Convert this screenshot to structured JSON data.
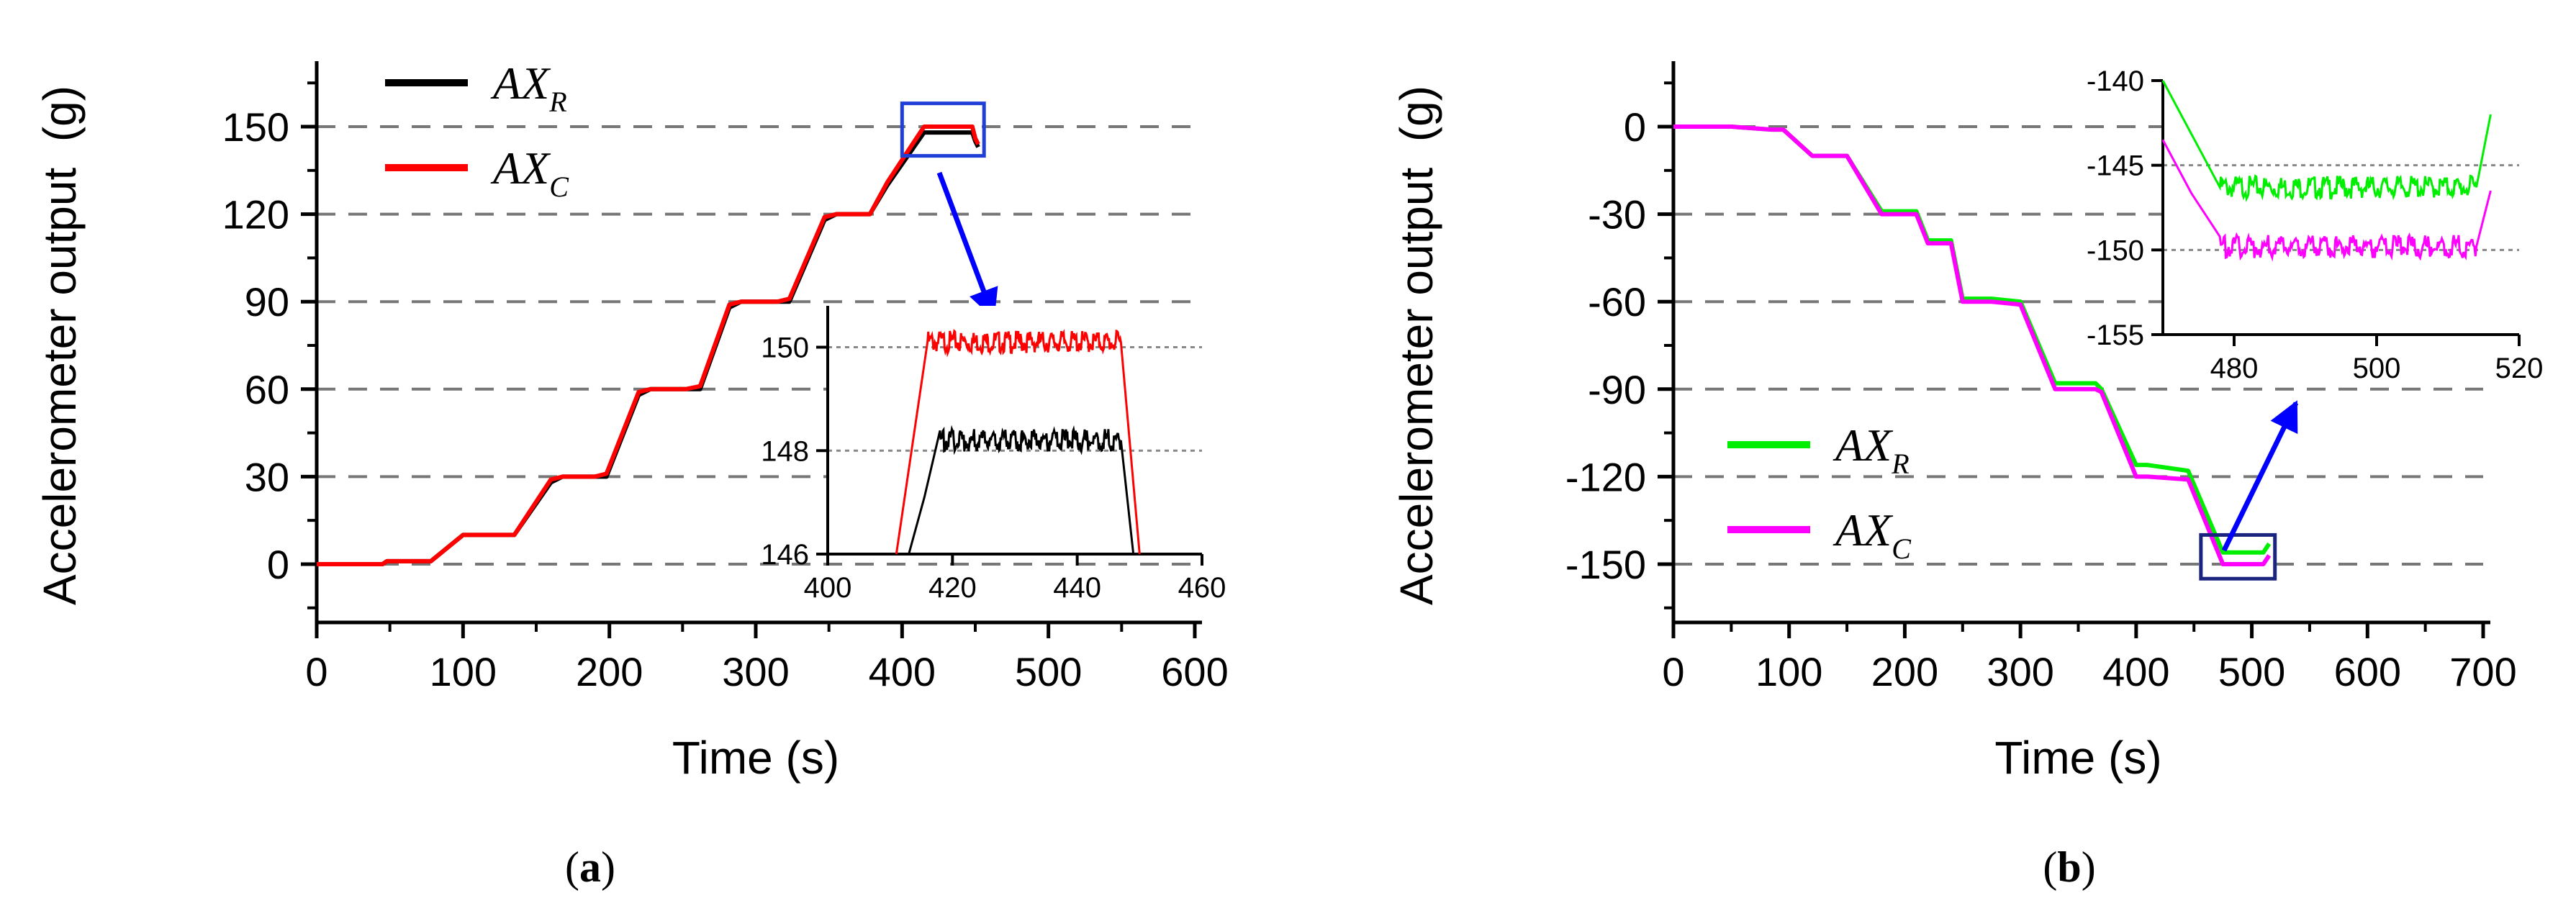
{
  "chart_data": [
    {
      "type": "line",
      "caption_letter": "a",
      "xlabel": "Time (s)",
      "ylabel": "Accelerometer output  (g)",
      "xlim": [
        0,
        600
      ],
      "ylim": [
        -20,
        170
      ],
      "xticks": [
        0,
        100,
        200,
        300,
        400,
        500,
        600
      ],
      "yticks": [
        0,
        30,
        60,
        90,
        120,
        150
      ],
      "hlines": [
        0,
        30,
        60,
        90,
        120,
        150
      ],
      "legend": [
        {
          "base": "AX",
          "sub": "R",
          "color": "#000000"
        },
        {
          "base": "AX",
          "sub": "C",
          "color": "#ff0000"
        }
      ],
      "series": [
        {
          "name": "AX_R",
          "color": "#000000",
          "x": [
            0,
            45,
            48,
            78,
            100,
            135,
            160,
            168,
            190,
            198,
            220,
            228,
            252,
            262,
            282,
            290,
            315,
            323,
            347,
            355,
            378,
            390,
            415,
            448,
            450,
            452
          ],
          "y": [
            0,
            0,
            1,
            1,
            10,
            10,
            28,
            30,
            30,
            30,
            58,
            60,
            60,
            60,
            88,
            90,
            90,
            90,
            118,
            120,
            120,
            130,
            148,
            148,
            145,
            143
          ]
        },
        {
          "name": "AX_C",
          "color": "#ff0000",
          "x": [
            0,
            45,
            48,
            78,
            100,
            135,
            160,
            168,
            190,
            198,
            220,
            228,
            252,
            262,
            282,
            290,
            315,
            323,
            347,
            355,
            378,
            390,
            415,
            448,
            450,
            452
          ],
          "y": [
            0,
            0,
            1,
            1,
            10,
            10,
            29,
            30,
            30,
            31,
            59,
            60,
            60,
            61,
            89,
            90,
            90,
            91,
            119,
            120,
            120,
            131,
            150,
            150,
            146,
            144
          ]
        }
      ],
      "zoom_box": {
        "xrange": [
          400,
          456
        ],
        "yrange": [
          140,
          158
        ]
      },
      "inset": {
        "xlim": [
          400,
          460
        ],
        "ylim": [
          146,
          150.8
        ],
        "xticks": [
          400,
          420,
          440,
          460
        ],
        "yticks": [
          146,
          148,
          150
        ],
        "ref_lines": [
          148,
          150
        ],
        "series": [
          {
            "name": "AX_C",
            "color": "#ff0000",
            "x": [
              411,
              416,
              447,
              450
            ],
            "y": [
              146,
              150.1,
              150.1,
              146
            ]
          },
          {
            "name": "AX_R",
            "color": "#000000",
            "x": [
              413,
              418,
              447,
              449
            ],
            "y": [
              146,
              148.2,
              148.2,
              146
            ]
          }
        ]
      }
    },
    {
      "type": "line",
      "caption_letter": "b",
      "xlabel": "Time (s)",
      "ylabel": "Accelerometer output  (g)",
      "xlim": [
        0,
        700
      ],
      "ylim": [
        -170,
        20
      ],
      "xticks": [
        0,
        100,
        200,
        300,
        400,
        500,
        600,
        700
      ],
      "yticks": [
        0,
        -30,
        -60,
        -90,
        -120,
        -150
      ],
      "hlines": [
        0,
        -30,
        -60,
        -90,
        -120,
        -150
      ],
      "legend": [
        {
          "base": "AX",
          "sub": "R",
          "color": "#00ee00"
        },
        {
          "base": "AX",
          "sub": "C",
          "color": "#ff00ff"
        }
      ],
      "series": [
        {
          "name": "AX_R",
          "color": "#00ee00",
          "x": [
            0,
            50,
            85,
            95,
            120,
            150,
            180,
            210,
            220,
            240,
            250,
            275,
            300,
            330,
            365,
            370,
            400,
            410,
            445,
            475,
            510,
            515
          ],
          "y": [
            0,
            0,
            -1,
            -1,
            -10,
            -10,
            -29,
            -29,
            -39,
            -39,
            -59,
            -59,
            -60,
            -88,
            -88,
            -90,
            -116,
            -116,
            -118,
            -146,
            -146,
            -143
          ]
        },
        {
          "name": "AX_C",
          "color": "#ff00ff",
          "x": [
            0,
            50,
            85,
            95,
            120,
            150,
            180,
            210,
            220,
            240,
            250,
            275,
            300,
            330,
            365,
            370,
            400,
            410,
            445,
            475,
            510,
            515
          ],
          "y": [
            0,
            0,
            -1,
            -1,
            -10,
            -10,
            -30,
            -30,
            -40,
            -40,
            -60,
            -60,
            -61,
            -90,
            -90,
            -91,
            -120,
            -120,
            -121,
            -150,
            -150,
            -147
          ]
        }
      ],
      "zoom_box": {
        "xrange": [
          456,
          520
        ],
        "yrange": [
          -155,
          -140
        ]
      },
      "inset": {
        "xlim": [
          470,
          520
        ],
        "ylim": [
          -155,
          -140
        ],
        "xticks": [
          480,
          500,
          520
        ],
        "yticks": [
          -140,
          -145,
          -150,
          -155
        ],
        "ref_lines": [
          -145,
          -150
        ],
        "series": [
          {
            "name": "AX_R",
            "color": "#00ee00",
            "x": [
              470,
              478,
              514,
              516
            ],
            "y": [
              -140,
              -146.3,
              -146.3,
              -142
            ]
          },
          {
            "name": "AX_C",
            "color": "#ff00ff",
            "x": [
              470,
              478,
              514,
              516
            ],
            "y": [
              -143.5,
              -149.8,
              -149.8,
              -146.5
            ]
          }
        ]
      }
    }
  ]
}
